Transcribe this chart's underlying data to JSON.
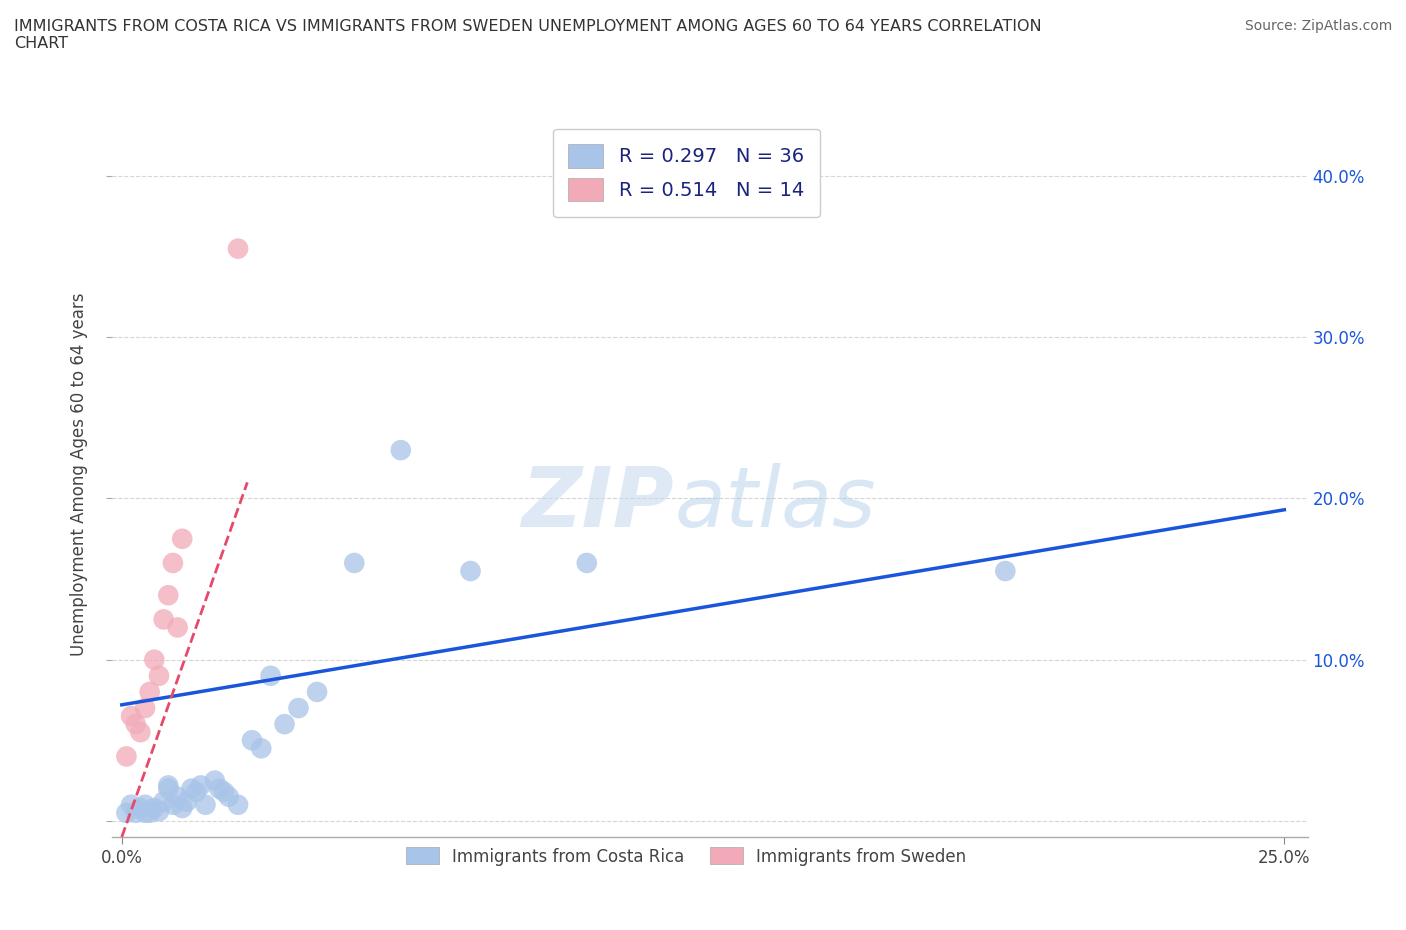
{
  "title": "IMMIGRANTS FROM COSTA RICA VS IMMIGRANTS FROM SWEDEN UNEMPLOYMENT AMONG AGES 60 TO 64 YEARS CORRELATION\nCHART",
  "source": "Source: ZipAtlas.com",
  "xlabel": "",
  "ylabel": "Unemployment Among Ages 60 to 64 years",
  "xlim": [
    -0.002,
    0.255
  ],
  "ylim": [
    -0.01,
    0.44
  ],
  "x_ticks": [
    0.0,
    0.25
  ],
  "x_tick_labels": [
    "0.0%",
    "25.0%"
  ],
  "y_ticks": [
    0.0,
    0.1,
    0.2,
    0.3,
    0.4
  ],
  "y_tick_labels_left": [
    "",
    "",
    "",
    "",
    ""
  ],
  "y_tick_labels_right": [
    "",
    "10.0%",
    "20.0%",
    "30.0%",
    "40.0%"
  ],
  "blue_color": "#a8c4e8",
  "pink_color": "#f2aab8",
  "blue_line_color": "#1a56db",
  "pink_line_color": "#e8496a",
  "r_blue": 0.297,
  "n_blue": 36,
  "r_pink": 0.514,
  "n_pink": 14,
  "watermark_zip": "ZIP",
  "watermark_atlas": "atlas",
  "legend_label_blue": "Immigrants from Costa Rica",
  "legend_label_pink": "Immigrants from Sweden",
  "blue_scatter_x": [
    0.001,
    0.002,
    0.003,
    0.004,
    0.005,
    0.005,
    0.006,
    0.007,
    0.008,
    0.009,
    0.01,
    0.01,
    0.011,
    0.012,
    0.013,
    0.014,
    0.015,
    0.016,
    0.017,
    0.018,
    0.02,
    0.021,
    0.022,
    0.023,
    0.025,
    0.028,
    0.03,
    0.032,
    0.035,
    0.038,
    0.042,
    0.05,
    0.06,
    0.075,
    0.1,
    0.19
  ],
  "blue_scatter_y": [
    0.005,
    0.01,
    0.005,
    0.008,
    0.005,
    0.01,
    0.005,
    0.008,
    0.006,
    0.012,
    0.02,
    0.022,
    0.01,
    0.015,
    0.008,
    0.012,
    0.02,
    0.018,
    0.022,
    0.01,
    0.025,
    0.02,
    0.018,
    0.015,
    0.01,
    0.05,
    0.045,
    0.09,
    0.06,
    0.07,
    0.08,
    0.16,
    0.23,
    0.155,
    0.16,
    0.155
  ],
  "pink_scatter_x": [
    0.001,
    0.002,
    0.003,
    0.004,
    0.005,
    0.006,
    0.007,
    0.008,
    0.009,
    0.01,
    0.011,
    0.012,
    0.013,
    0.025
  ],
  "pink_scatter_y": [
    0.04,
    0.065,
    0.06,
    0.055,
    0.07,
    0.08,
    0.1,
    0.09,
    0.125,
    0.14,
    0.16,
    0.12,
    0.175,
    0.355
  ],
  "blue_line_x": [
    0.0,
    0.25
  ],
  "blue_line_y": [
    0.072,
    0.193
  ],
  "pink_line_x": [
    0.0,
    0.027
  ],
  "pink_line_y": [
    -0.01,
    0.21
  ]
}
